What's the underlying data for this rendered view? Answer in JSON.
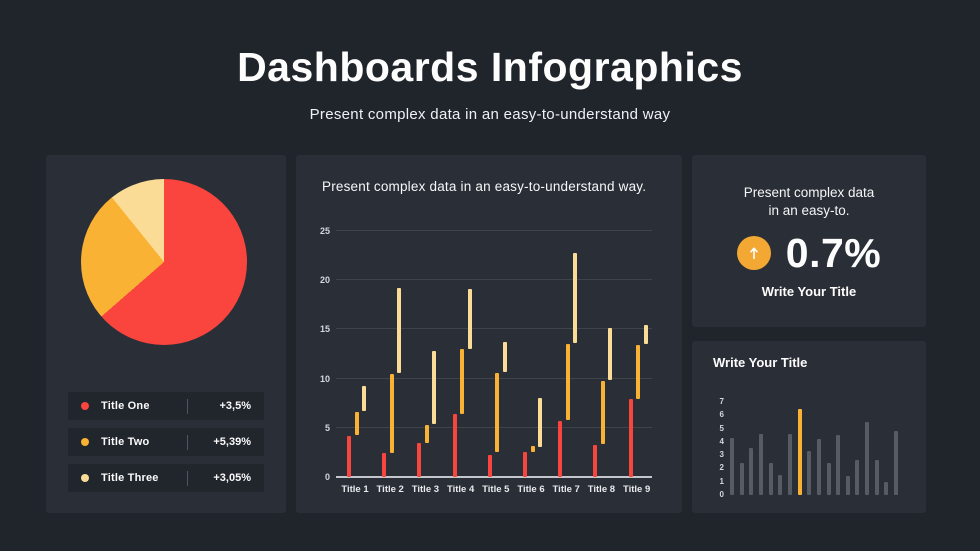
{
  "header": {
    "title": "Dashboards Infographics",
    "subtitle": "Present complex data in an easy-to-understand way"
  },
  "colors": {
    "page_bg": "#20242B",
    "panel_bg": "#2A2E36",
    "legend_row_bg": "#21252C",
    "red": "#F9453E",
    "amber": "#F9B233",
    "cream": "#FBDC96",
    "gray_bar": "#575C64",
    "kpi_circle": "#F2A833"
  },
  "pie_panel": {
    "legend": [
      {
        "label": "Title One",
        "value": "+3,5%",
        "color": "#F9453E"
      },
      {
        "label": "Title Two",
        "value": "+5,39%",
        "color": "#F9B233"
      },
      {
        "label": "Title Three",
        "value": "+3,05%",
        "color": "#FBDC96"
      }
    ]
  },
  "middle_panel": {
    "title": "Present complex data in an easy-to-understand way."
  },
  "kpi_panel": {
    "line1": "Present complex data",
    "line2": "in an easy-to.",
    "value": "0.7%",
    "label": "Write Your Title"
  },
  "mini_panel": {
    "title": "Write Your Title"
  },
  "chart_data": [
    {
      "id": "pie",
      "type": "pie",
      "slices": [
        {
          "name": "Title One",
          "percent": 63.6,
          "color": "#F9453E"
        },
        {
          "name": "Title Two",
          "percent": 25.6,
          "color": "#F9B233"
        },
        {
          "name": "Title Three",
          "percent": 10.8,
          "color": "#FBDC96"
        }
      ],
      "legend_values": [
        "+3,5%",
        "+5,39%",
        "+3,05%"
      ]
    },
    {
      "id": "floating-bars",
      "type": "bar",
      "subtype": "floating-range-columns",
      "title": "Present complex data in an easy-to-understand way.",
      "categories": [
        "Title 1",
        "Title 2",
        "Title 3",
        "Title 4",
        "Title 5",
        "Title 6",
        "Title 7",
        "Title 8",
        "Title 9"
      ],
      "ylim": [
        0,
        25
      ],
      "yticks": [
        0,
        5,
        10,
        15,
        20,
        25
      ],
      "grid": true,
      "series": [
        {
          "name": "red",
          "color": "#F9453E",
          "ranges": [
            [
              0,
              4.2
            ],
            [
              0,
              2.4
            ],
            [
              0,
              3.5
            ],
            [
              0,
              6.4
            ],
            [
              0,
              2.2
            ],
            [
              0,
              2.5
            ],
            [
              0,
              5.7
            ],
            [
              0,
              3.3
            ],
            [
              0,
              7.9
            ]
          ]
        },
        {
          "name": "amber",
          "color": "#F9B233",
          "ranges": [
            [
              4.3,
              6.6
            ],
            [
              2.4,
              10.5
            ],
            [
              3.5,
              5.3
            ],
            [
              6.4,
              13.0
            ],
            [
              2.5,
              10.6
            ],
            [
              2.5,
              3.2
            ],
            [
              5.8,
              13.5
            ],
            [
              3.4,
              9.8
            ],
            [
              7.9,
              13.4
            ]
          ]
        },
        {
          "name": "cream",
          "color": "#FBDC96",
          "ranges": [
            [
              6.7,
              9.2
            ],
            [
              10.6,
              19.2
            ],
            [
              5.4,
              12.8
            ],
            [
              13.0,
              19.1
            ],
            [
              10.7,
              13.7
            ],
            [
              3.1,
              8.0
            ],
            [
              13.6,
              22.8
            ],
            [
              9.9,
              15.1
            ],
            [
              13.5,
              15.5
            ]
          ]
        }
      ]
    },
    {
      "id": "mini-bars",
      "type": "bar",
      "title": "Write Your Title",
      "ylim": [
        0,
        7
      ],
      "yticks": [
        0,
        1,
        2,
        3,
        4,
        5,
        6,
        7
      ],
      "values": [
        4.3,
        2.4,
        3.5,
        4.6,
        2.4,
        1.5,
        4.6,
        6.5,
        3.3,
        4.2,
        2.4,
        4.5,
        1.4,
        2.6,
        5.5,
        2.6,
        1.0,
        4.8
      ],
      "highlight_index": 7,
      "bar_color": "#575C64",
      "highlight_color": "#F9B233"
    }
  ]
}
